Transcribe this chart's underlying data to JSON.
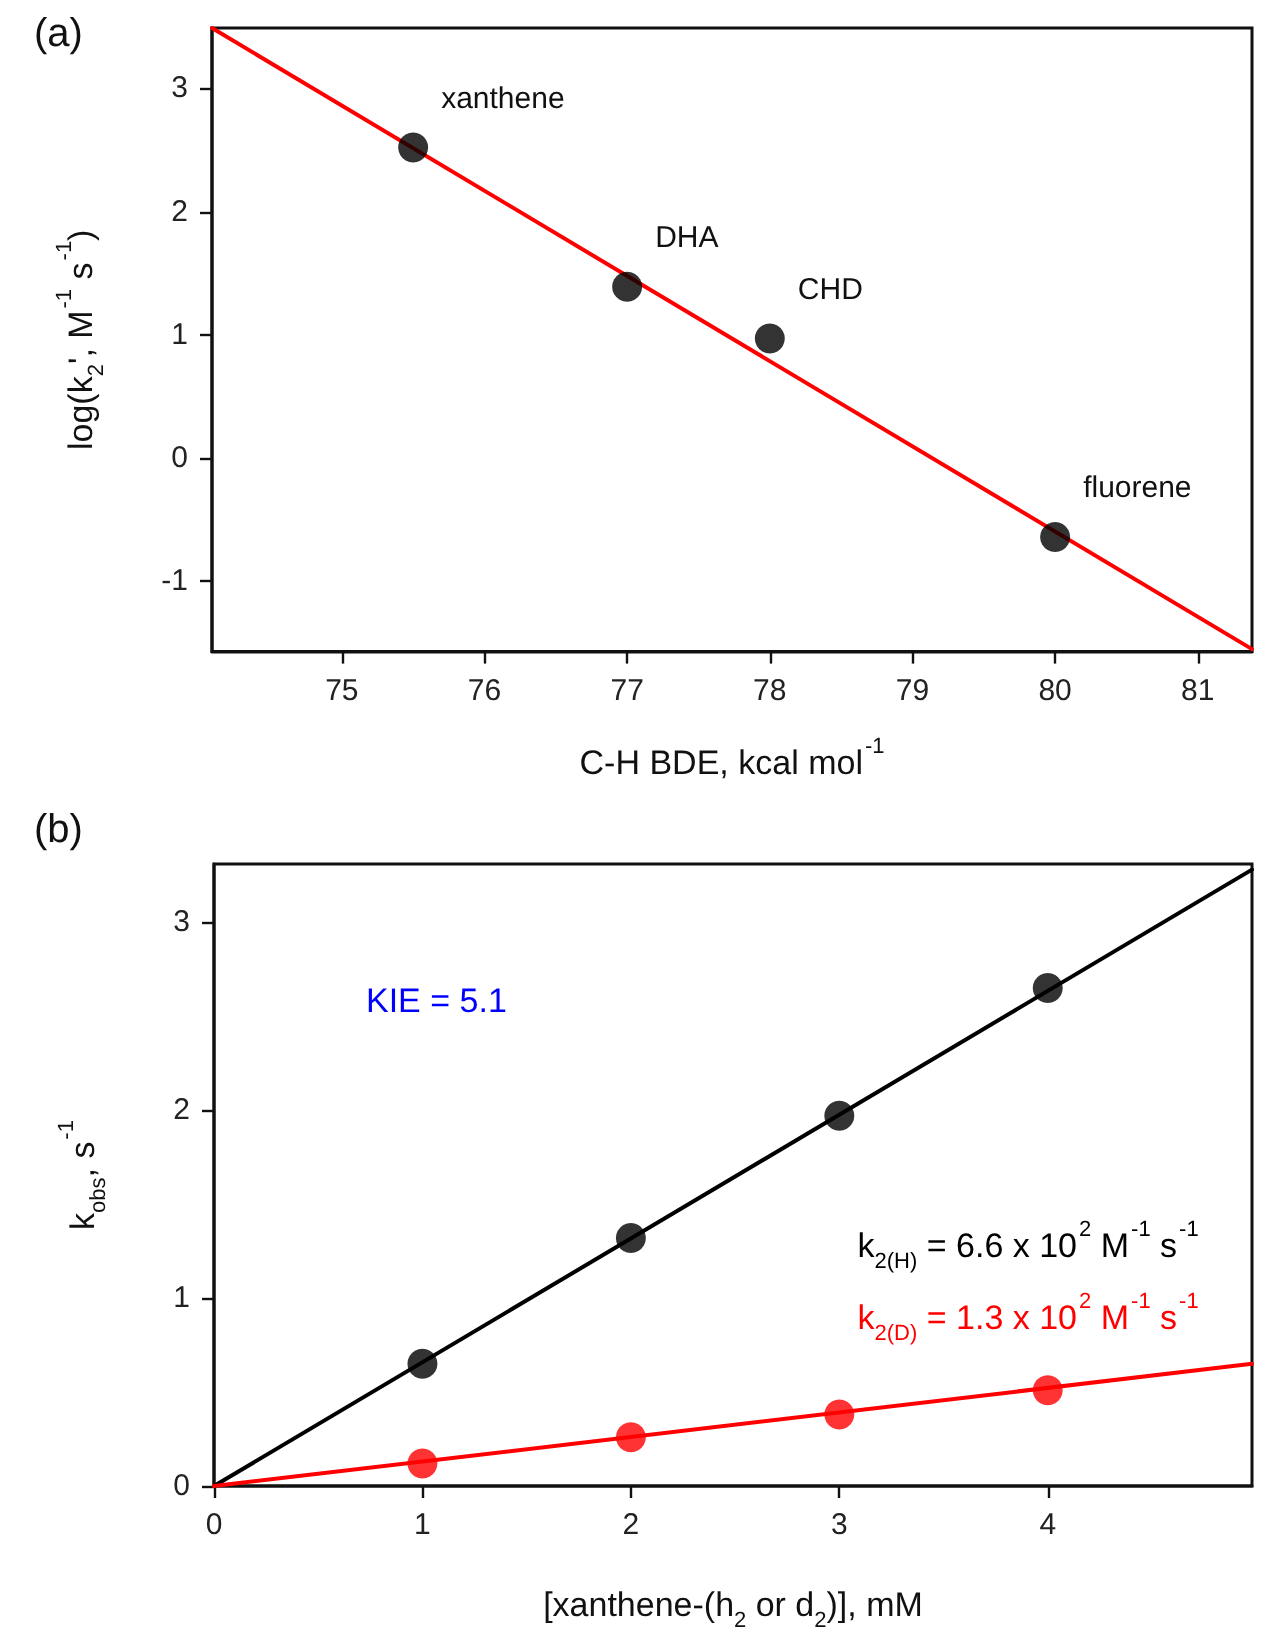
{
  "chart_data": [
    {
      "type": "scatter",
      "title": "(a)",
      "xlabel": "C-H BDE, kcal mol$^{-1}$",
      "ylabel": "log(k$_{2}$', M$^{-1}$ s$^{-1}$)",
      "xlim": [
        74.09,
        81.38
      ],
      "ylim": [
        -1.57,
        3.49
      ],
      "xticks": [
        75,
        76,
        77,
        78,
        79,
        80,
        81
      ],
      "yticks": [
        -1,
        0,
        1,
        2,
        3
      ],
      "line_style": "solid",
      "series": [
        {
          "type": "line",
          "marker": "none",
          "color": "#ff0000",
          "x": [
            74.09,
            81.38
          ],
          "values": [
            3.49,
            -1.55
          ]
        },
        {
          "marker": "circle",
          "color": "#000000",
          "x": [
            75.5,
            77,
            78,
            80
          ],
          "values": [
            2.52,
            1.39,
            0.97,
            -0.64
          ]
        }
      ],
      "annotations": [
        {
          "text": "xanthene",
          "x": 75.5,
          "y": 2.52
        },
        {
          "text": "DHA",
          "x": 77,
          "y": 1.39
        },
        {
          "text": "CHD",
          "x": 78,
          "y": 0.97
        },
        {
          "text": "fluorene",
          "x": 80,
          "y": -0.64
        }
      ]
    },
    {
      "type": "scatter",
      "title": "(b)",
      "xlabel": "[xanthene-(h$_{2}$ or d$_{2}$)], mM",
      "ylabel": "k$_{obs}$, s$^{-1}$",
      "xlim": [
        0,
        4.98
      ],
      "ylim": [
        0,
        3.31
      ],
      "xticks": [
        0,
        1,
        2,
        3,
        4
      ],
      "yticks": [
        0,
        1,
        2,
        3
      ],
      "line_style": "solid",
      "series": [
        {
          "type": "line",
          "marker": "none",
          "name": "k$_{2(H)}$ = 6.6 x 10$^{2}$ M$^{-1}$ s$^{-1}$",
          "color": "#000000",
          "x": [
            0,
            4.98
          ],
          "values": [
            0,
            3.28
          ]
        },
        {
          "type": "line",
          "marker": "none",
          "name": "k$_{2(D)}$ = 1.3 x 10$^{2}$ M$^{-1}$ s$^{-1}$",
          "color": "#ff0000",
          "x": [
            0,
            4.98
          ],
          "values": [
            0,
            0.65
          ]
        },
        {
          "marker": "circle",
          "color": "#000000",
          "x": [
            1,
            2,
            3,
            4
          ],
          "values": [
            0.65,
            1.32,
            1.97,
            2.65
          ]
        },
        {
          "marker": "circle",
          "color": "#ff0000",
          "x": [
            1,
            2,
            3,
            4
          ],
          "values": [
            0.12,
            0.26,
            0.38,
            0.51
          ]
        }
      ],
      "annotations": [
        "KIE = 5.1"
      ]
    }
  ]
}
